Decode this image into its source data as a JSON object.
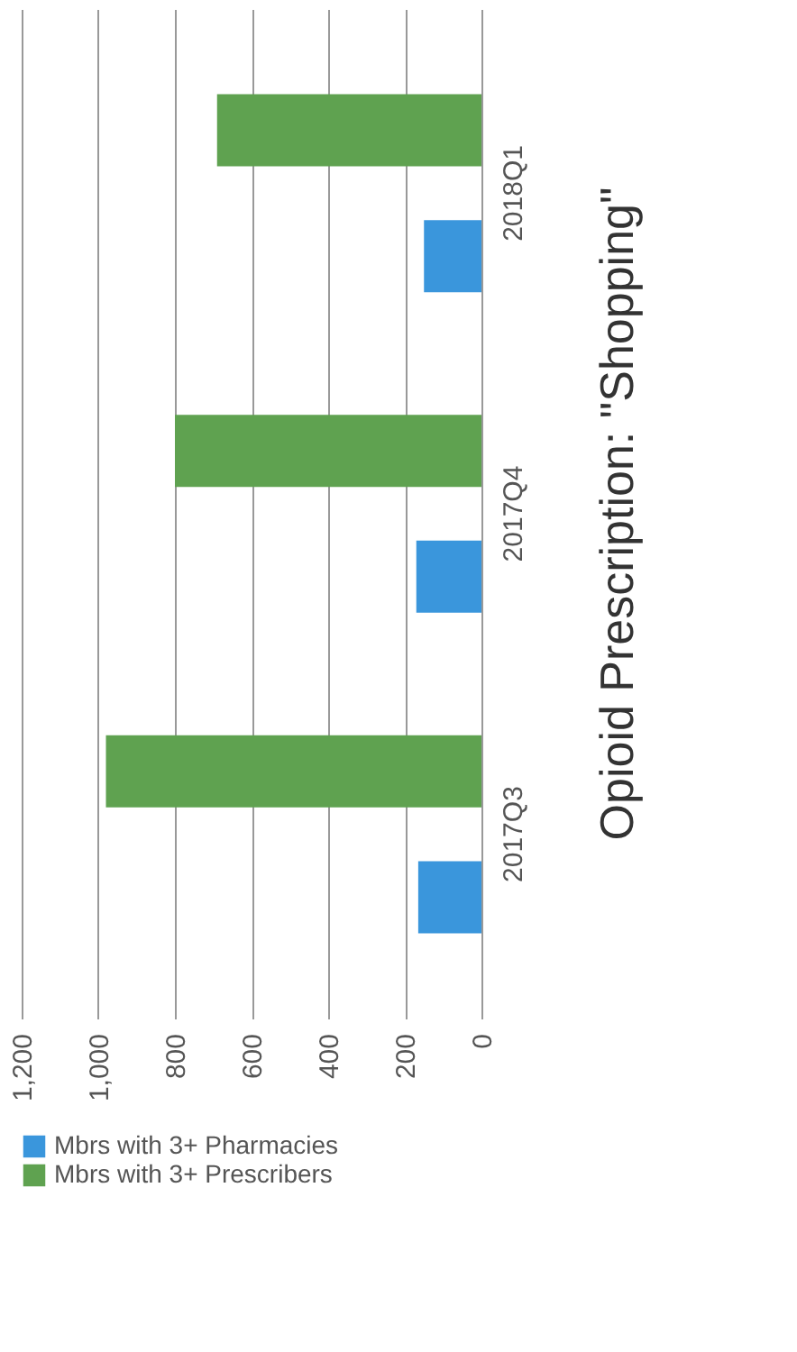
{
  "chart_data": {
    "type": "bar",
    "orientation": "horizontal",
    "title": "Opioid Prescription: \"Shopping\"",
    "categories": [
      "2018Q1",
      "2017Q4",
      "2017Q3"
    ],
    "series": [
      {
        "name": "Mbrs with 3+ Pharmacies",
        "color": "#3a96dc",
        "values": [
          150,
          170,
          165
        ]
      },
      {
        "name": "Mbrs with 3+ Prescribers",
        "color": "#5fa250",
        "values": [
          690,
          800,
          980
        ]
      }
    ],
    "xlim": [
      1200,
      0
    ],
    "xticks": [
      {
        "value": 1200,
        "label": "1,200"
      },
      {
        "value": 1000,
        "label": "1,000"
      },
      800,
      600,
      400,
      200,
      0
    ],
    "grid": "x",
    "legend": "bottom"
  }
}
